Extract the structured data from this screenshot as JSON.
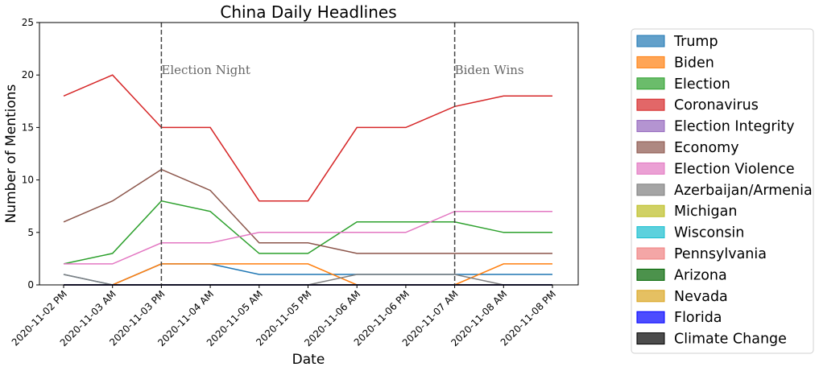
{
  "chart_data": {
    "type": "line",
    "title": "China Daily Headlines",
    "xlabel": "Date",
    "ylabel": "Number of Mentions",
    "x": [
      "2020-11-02 PM",
      "2020-11-03 AM",
      "2020-11-03 PM",
      "2020-11-04 AM",
      "2020-11-05 AM",
      "2020-11-05 PM",
      "2020-11-06 AM",
      "2020-11-06 PM",
      "2020-11-07 AM",
      "2020-11-08 AM",
      "2020-11-08 PM"
    ],
    "ylim": [
      0,
      25
    ],
    "yticks": [
      "0",
      "5",
      "10",
      "15",
      "20",
      "25"
    ],
    "grid": false,
    "legend_position": "right, outside plot",
    "series": [
      {
        "name": "Trump",
        "color": "#1f77b4",
        "values": [
          1,
          0,
          2,
          2,
          1,
          1,
          1,
          1,
          1,
          1,
          1
        ]
      },
      {
        "name": "Biden",
        "color": "#ff7f0e",
        "values": [
          0,
          0,
          2,
          2,
          2,
          2,
          0,
          0,
          0,
          2,
          2
        ]
      },
      {
        "name": "Election",
        "color": "#2ca02c",
        "values": [
          2,
          3,
          8,
          7,
          3,
          3,
          6,
          6,
          6,
          5,
          5
        ]
      },
      {
        "name": "Coronavirus",
        "color": "#d62728",
        "values": [
          18,
          20,
          15,
          15,
          8,
          8,
          15,
          15,
          17,
          18,
          18
        ]
      },
      {
        "name": "Election Integrity",
        "color": "#9467bd",
        "values": [
          0,
          0,
          0,
          0,
          0,
          0,
          0,
          0,
          0,
          0,
          0
        ]
      },
      {
        "name": "Economy",
        "color": "#8c564b",
        "values": [
          6,
          8,
          11,
          9,
          4,
          4,
          3,
          3,
          3,
          3,
          3
        ]
      },
      {
        "name": "Election Violence",
        "color": "#e377c2",
        "values": [
          2,
          2,
          4,
          4,
          5,
          5,
          5,
          5,
          7,
          7,
          7
        ]
      },
      {
        "name": "Azerbaijan/Armenia",
        "color": "#7f7f7f",
        "values": [
          1,
          0,
          0,
          0,
          0,
          0,
          1,
          1,
          1,
          0,
          0
        ]
      },
      {
        "name": "Michigan",
        "color": "#bcbd22",
        "values": [
          0,
          0,
          0,
          0,
          0,
          0,
          0,
          0,
          0,
          0,
          0
        ]
      },
      {
        "name": "Wisconsin",
        "color": "#17becf",
        "values": [
          0,
          0,
          0,
          0,
          0,
          0,
          0,
          0,
          0,
          0,
          0
        ]
      },
      {
        "name": "Pennsylvania",
        "color": "#f08080",
        "values": [
          0,
          0,
          0,
          0,
          0,
          0,
          0,
          0,
          0,
          0,
          0
        ]
      },
      {
        "name": "Arizona",
        "color": "#006400",
        "values": [
          0,
          0,
          0,
          0,
          0,
          0,
          0,
          0,
          0,
          0,
          0
        ]
      },
      {
        "name": "Nevada",
        "color": "#daa520",
        "values": [
          0,
          0,
          0,
          0,
          0,
          0,
          0,
          0,
          0,
          0,
          0
        ]
      },
      {
        "name": "Florida",
        "color": "#0000ff",
        "values": [
          0,
          0,
          0,
          0,
          0,
          0,
          0,
          0,
          0,
          0,
          0
        ]
      },
      {
        "name": "Climate Change",
        "color": "#000000",
        "values": [
          0,
          0,
          0,
          0,
          0,
          0,
          0,
          0,
          0,
          0,
          0
        ]
      }
    ],
    "annotations": [
      {
        "text": "Election Night",
        "x_index": 2,
        "y": 20
      },
      {
        "text": "Biden Wins",
        "x_index": 8,
        "y": 20
      }
    ]
  }
}
